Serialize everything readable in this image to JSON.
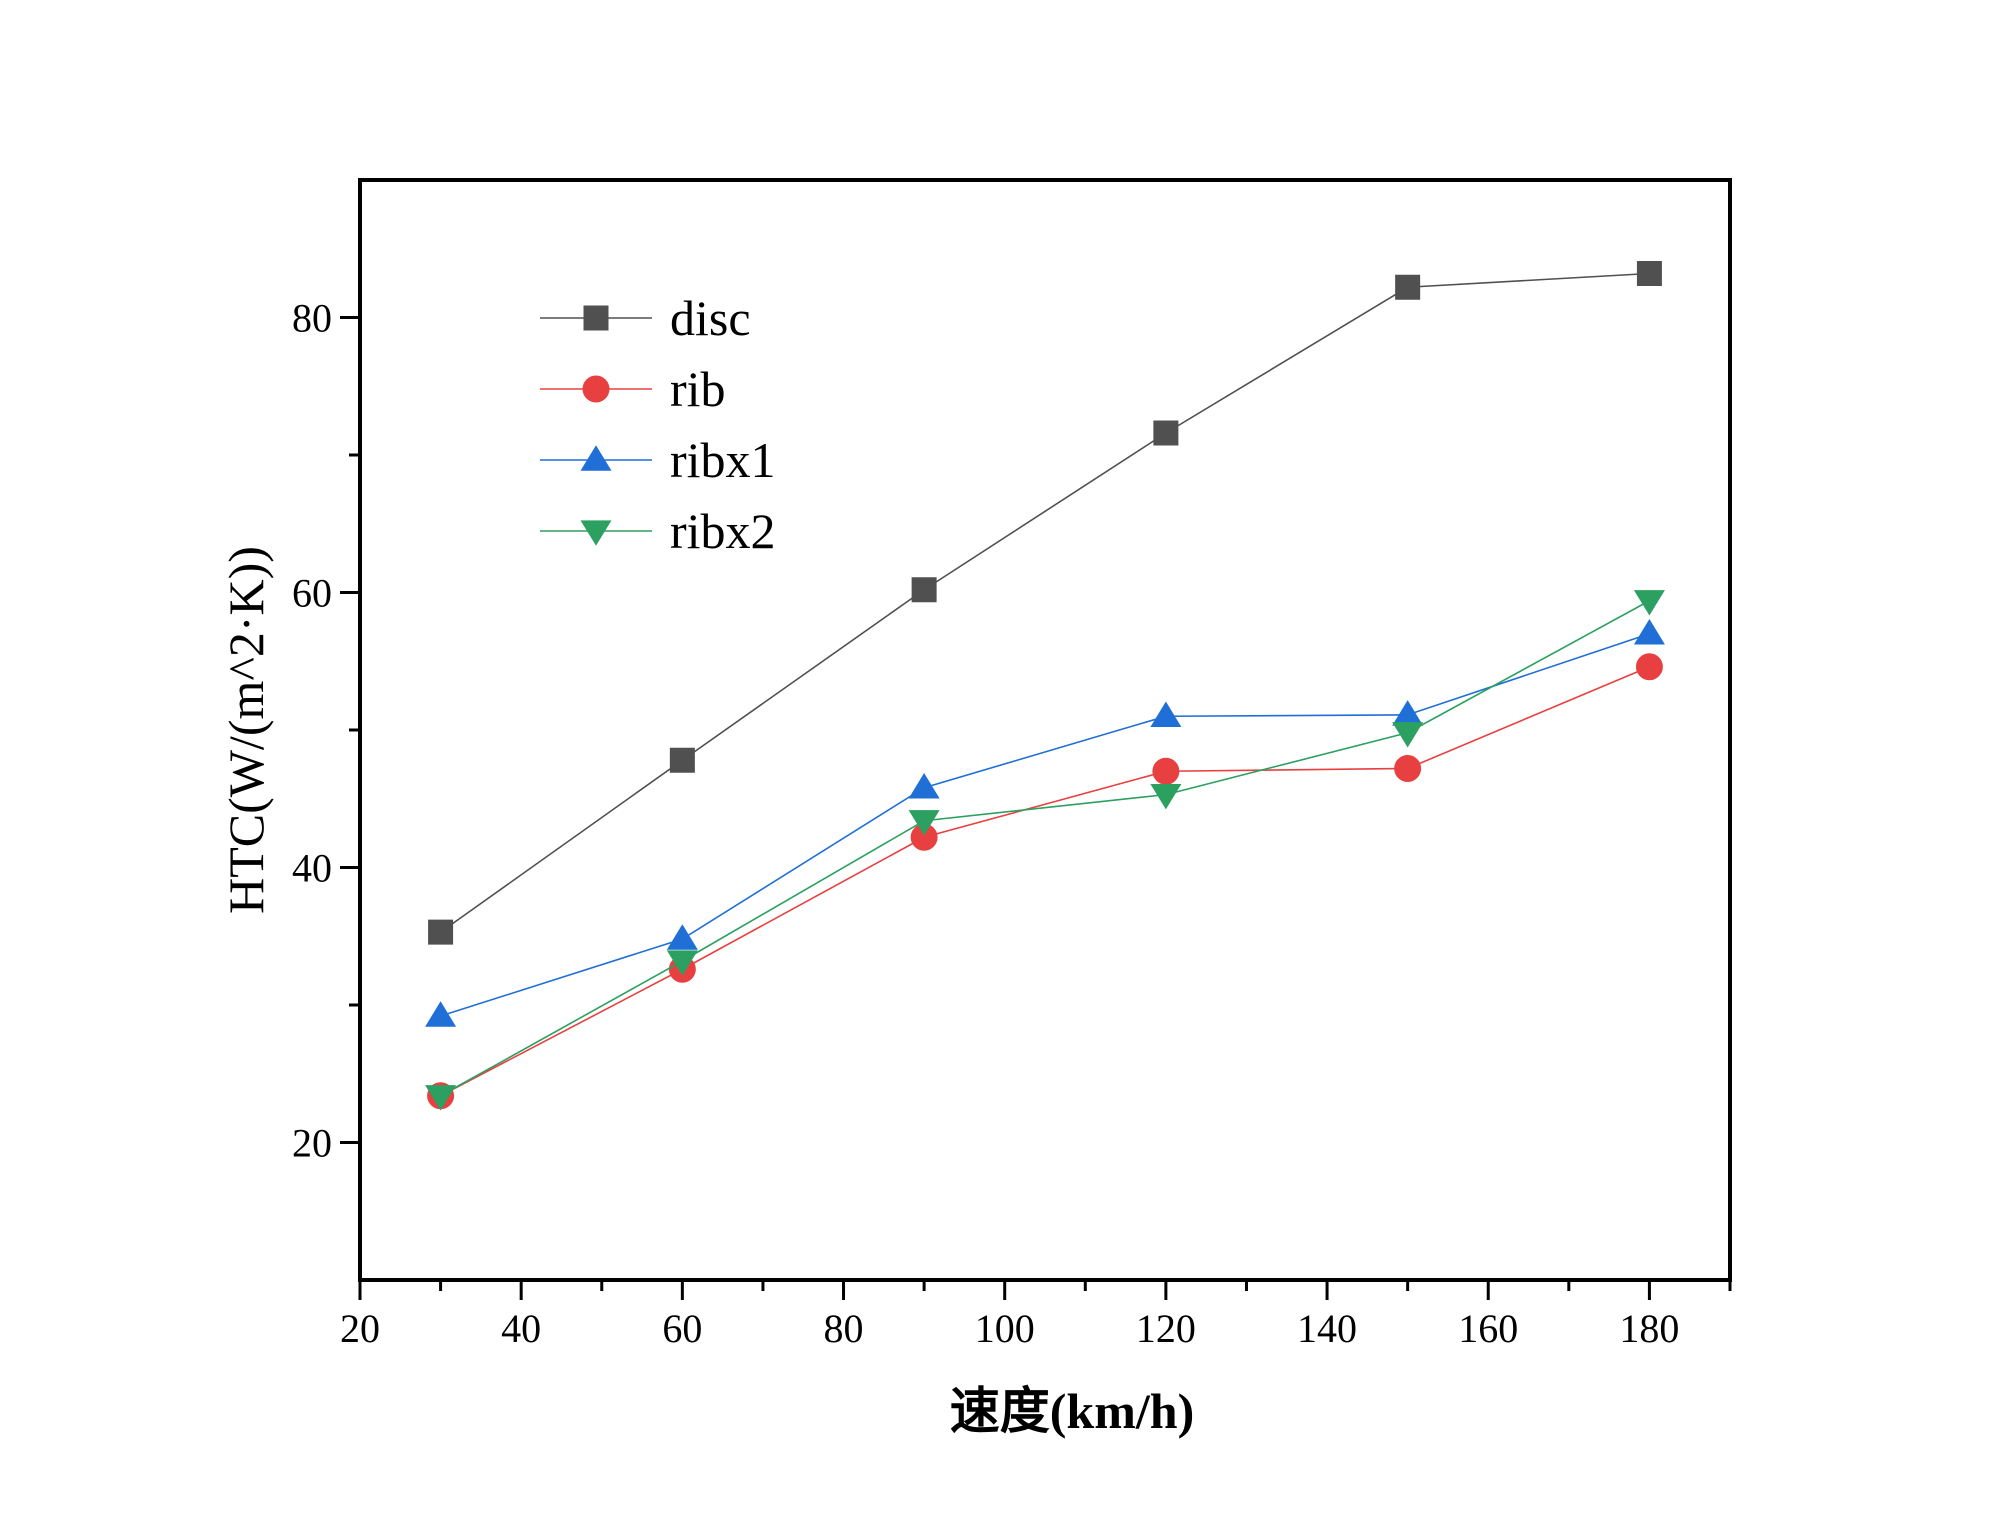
{
  "chart_data": {
    "type": "line",
    "title": "",
    "xlabel": "速度(km/h)",
    "ylabel": "HTC(W/(m^2·K))",
    "xlim": [
      20,
      190
    ],
    "ylim": [
      10,
      90
    ],
    "xticks": [
      20,
      40,
      60,
      80,
      100,
      120,
      140,
      160,
      180
    ],
    "yticks": [
      20,
      40,
      60,
      80
    ],
    "grid": false,
    "legend_position": "top-left",
    "x": [
      30,
      60,
      90,
      120,
      150,
      180
    ],
    "series": [
      {
        "name": "disc",
        "marker": "square",
        "color": "#505050",
        "values": [
          35.3,
          47.8,
          60.2,
          71.6,
          82.2,
          83.2
        ]
      },
      {
        "name": "rib",
        "marker": "circle",
        "color": "#e84040",
        "values": [
          23.4,
          32.6,
          42.2,
          47.0,
          47.2,
          54.6
        ]
      },
      {
        "name": "ribx1",
        "marker": "triangle-up",
        "color": "#1f6fd6",
        "values": [
          29.2,
          34.8,
          45.8,
          51.0,
          51.1,
          57.0
        ]
      },
      {
        "name": "ribx2",
        "marker": "triangle-down",
        "color": "#2ca060",
        "values": [
          23.4,
          33.2,
          43.4,
          45.3,
          49.8,
          59.4
        ]
      }
    ]
  }
}
